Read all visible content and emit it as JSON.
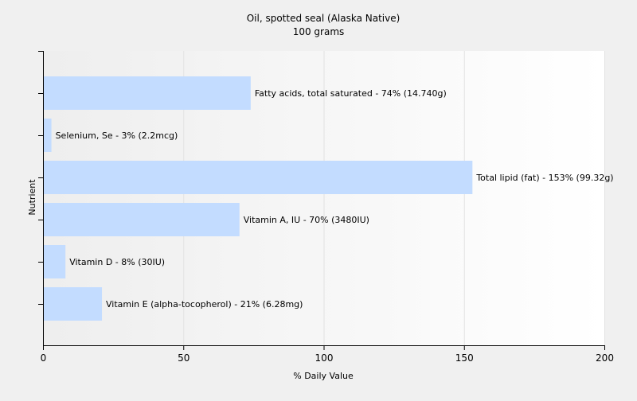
{
  "chart_data": {
    "type": "bar",
    "orientation": "horizontal",
    "title": "Oil, spotted seal (Alaska Native)",
    "subtitle": "100 grams",
    "xlabel": "% Daily Value",
    "ylabel": "Nutrient",
    "xlim": [
      0,
      200
    ],
    "xticks": [
      0,
      50,
      100,
      150,
      200
    ],
    "grid": true,
    "categories": [
      "Fatty acids, total saturated",
      "Selenium, Se",
      "Total lipid (fat)",
      "Vitamin A, IU",
      "Vitamin D",
      "Vitamin E (alpha-tocopherol)"
    ],
    "values": [
      74,
      3,
      153,
      70,
      8,
      21
    ],
    "labels": [
      "Fatty acids, total saturated - 74% (14.740g)",
      "Selenium, Se - 3% (2.2mcg)",
      "Total lipid (fat) - 153% (99.32g)",
      "Vitamin A, IU - 70% (3480IU)",
      "Vitamin D - 8% (30IU)",
      "Vitamin E (alpha-tocopherol) - 21% (6.28mg)"
    ],
    "colors": {
      "bar": "#c3dcff",
      "plot_bg_left": "#eeeeee",
      "plot_bg_right": "#ffffff",
      "gridline": "#e2e2e2",
      "axis": "#000000"
    }
  }
}
